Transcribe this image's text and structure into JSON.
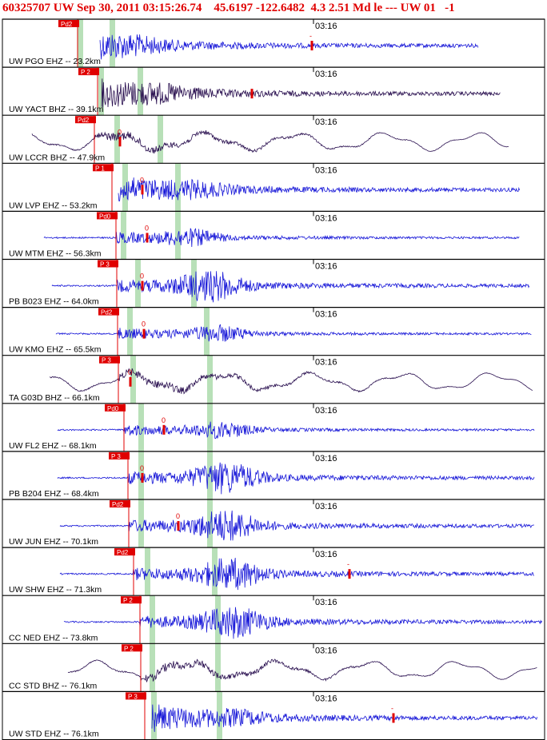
{
  "header": {
    "title": "60325707 UW Sep 30, 2011 03:15:26.74    45.6197 -122.6482  4.3 2.51 Md le --- UW 01   -1"
  },
  "chart_data": {
    "type": "line",
    "description_of_panels": "stacked seismogram traces, one per station, ordered by epicentral distance",
    "time_marker_label": "03:16",
    "colors": {
      "blue": "#1818d8",
      "dark": "#2a1050",
      "pick": "#e00000",
      "window": "#b8e0b8",
      "frame": "#000000"
    },
    "traces": [
      {
        "label": "UW PGO EHZ -- 23.2km",
        "color": "blue",
        "pick_label": "Pd2",
        "amp_mark": "-",
        "style": "impulsive"
      },
      {
        "label": "UW YACT BHZ -- 39.1km",
        "color": "dark",
        "pick_label": "P 2",
        "amp_mark": "",
        "style": "impulsive"
      },
      {
        "label": "UW LCCR BHZ -- 47.9km",
        "color": "dark",
        "pick_label": "Pd2",
        "amp_mark": "0",
        "style": "long"
      },
      {
        "label": "UW LVP EHZ -- 53.2km",
        "color": "blue",
        "pick_label": "P 1",
        "amp_mark": "0",
        "style": "impulsive"
      },
      {
        "label": "UW MTM EHZ -- 56.3km",
        "color": "blue",
        "pick_label": "Pd0",
        "amp_mark": "0",
        "style": "small"
      },
      {
        "label": "PB B023 EHZ -- 64.0km",
        "color": "blue",
        "pick_label": "P 3",
        "amp_mark": "0",
        "style": "emergent"
      },
      {
        "label": "UW KMO EHZ -- 65.5km",
        "color": "blue",
        "pick_label": "Pd2",
        "amp_mark": "0",
        "style": "small"
      },
      {
        "label": "TA G03D BHZ -- 66.1km",
        "color": "dark",
        "pick_label": "P 3",
        "amp_mark": "0",
        "style": "long"
      },
      {
        "label": "UW FL2 EHZ -- 68.1km",
        "color": "blue",
        "pick_label": "Pd0",
        "amp_mark": "0",
        "style": "small"
      },
      {
        "label": "PB B204 EHZ -- 68.4km",
        "color": "blue",
        "pick_label": "P 3",
        "amp_mark": "0",
        "style": "emergent"
      },
      {
        "label": "UW JUN EHZ -- 70.1km",
        "color": "blue",
        "pick_label": "Pd2",
        "amp_mark": "0",
        "style": "emergent"
      },
      {
        "label": "UW SHW EHZ -- 71.3km",
        "color": "blue",
        "pick_label": "Pd2",
        "amp_mark": "-",
        "style": "emergent"
      },
      {
        "label": "CC NED EHZ -- 73.8km",
        "color": "blue",
        "pick_label": "P 2",
        "amp_mark": "",
        "style": "emergent"
      },
      {
        "label": "CC STD BHZ -- 76.1km",
        "color": "dark",
        "pick_label": "P 2",
        "amp_mark": "",
        "style": "long"
      },
      {
        "label": "UW STD EHZ -- 76.1km",
        "color": "blue",
        "pick_label": "P 3",
        "amp_mark": "-",
        "style": "impulsive"
      }
    ]
  }
}
